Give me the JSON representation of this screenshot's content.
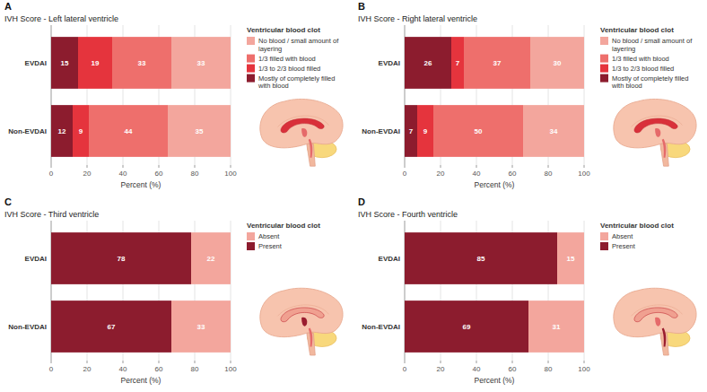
{
  "chart_data": [
    {
      "type": "bar",
      "panel": "A",
      "title": "IVH Score - Left lateral ventricle",
      "x_label": "Percent (%)",
      "orientation": "horizontal",
      "stacked": true,
      "data_labels": true,
      "grid": true,
      "legend": "right",
      "legend_title": "Ventricular blood clot",
      "categories": [
        "EVDAI",
        "Non-EVDAI"
      ],
      "xlim": [
        0,
        100
      ],
      "xticks": [
        0,
        20,
        40,
        60,
        80,
        100
      ],
      "series": [
        {
          "name": "Mostly of completely filled with blood",
          "color": "#8c1c2e",
          "values": [
            15,
            12
          ]
        },
        {
          "name": "1/3 to 2/3 blood filled",
          "color": "#e5343d",
          "values": [
            19,
            9
          ]
        },
        {
          "name": "1/3 filled with blood",
          "color": "#ee6f6c",
          "values": [
            33,
            44
          ]
        },
        {
          "name": "No blood / small amount of layering",
          "color": "#f3a69d",
          "values": [
            33,
            35
          ]
        }
      ]
    },
    {
      "type": "bar",
      "panel": "B",
      "title": "IVH Score - Right lateral ventricle",
      "x_label": "Percent (%)",
      "orientation": "horizontal",
      "stacked": true,
      "data_labels": true,
      "grid": true,
      "legend": "right",
      "legend_title": "Ventricular blood clot",
      "categories": [
        "EVDAI",
        "Non-EVDAI"
      ],
      "xlim": [
        0,
        100
      ],
      "xticks": [
        0,
        20,
        40,
        60,
        80,
        100
      ],
      "series": [
        {
          "name": "Mostly of completely filled with blood",
          "color": "#8c1c2e",
          "values": [
            26,
            7
          ]
        },
        {
          "name": "1/3 to 2/3 blood filled",
          "color": "#e5343d",
          "values": [
            7,
            9
          ]
        },
        {
          "name": "1/3 filled with blood",
          "color": "#ee6f6c",
          "values": [
            37,
            50
          ]
        },
        {
          "name": "No blood / small amount of layering",
          "color": "#f3a69d",
          "values": [
            30,
            34
          ]
        }
      ]
    },
    {
      "type": "bar",
      "panel": "C",
      "title": "IVH Score - Third ventricle",
      "x_label": "Percent (%)",
      "orientation": "horizontal",
      "stacked": true,
      "data_labels": true,
      "grid": true,
      "legend": "right",
      "legend_title": "Ventricular blood clot",
      "categories": [
        "EVDAI",
        "Non-EVDAI"
      ],
      "xlim": [
        0,
        100
      ],
      "xticks": [
        0,
        20,
        40,
        60,
        80,
        100
      ],
      "series": [
        {
          "name": "Present",
          "color": "#8c1c2e",
          "values": [
            78,
            67
          ]
        },
        {
          "name": "Absent",
          "color": "#f3a69d",
          "values": [
            22,
            33
          ]
        }
      ]
    },
    {
      "type": "bar",
      "panel": "D",
      "title": "IVH Score - Fourth ventricle",
      "x_label": "Percent (%)",
      "orientation": "horizontal",
      "stacked": true,
      "data_labels": true,
      "grid": true,
      "legend": "right",
      "legend_title": "Ventricular blood clot",
      "categories": [
        "EVDAI",
        "Non-EVDAI"
      ],
      "xlim": [
        0,
        100
      ],
      "xticks": [
        0,
        20,
        40,
        60,
        80,
        100
      ],
      "series": [
        {
          "name": "Present",
          "color": "#8c1c2e",
          "values": [
            85,
            69
          ]
        },
        {
          "name": "Absent",
          "color": "#f3a69d",
          "values": [
            15,
            31
          ]
        }
      ]
    }
  ]
}
